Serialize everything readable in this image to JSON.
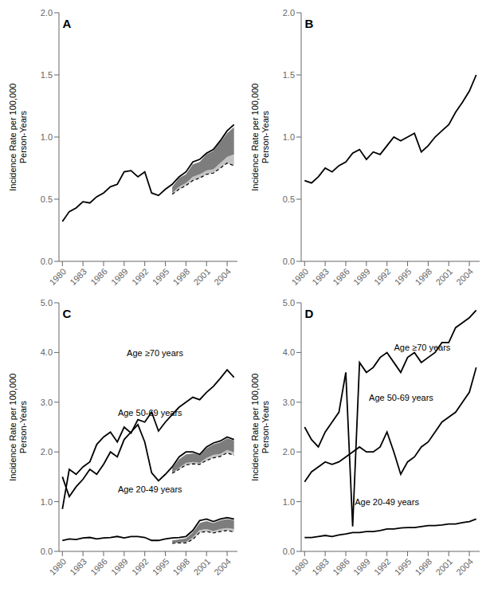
{
  "chart_data": [
    {
      "type": "line",
      "title": "A",
      "y_label": "Incidence Rate per 100,000\nPerson-Years",
      "x": [
        1980,
        1981,
        1982,
        1983,
        1984,
        1985,
        1986,
        1987,
        1988,
        1989,
        1990,
        1991,
        1992,
        1993,
        1994,
        1995,
        1996,
        1997,
        1998,
        1999,
        2000,
        2001,
        2002,
        2003,
        2004,
        2005
      ],
      "xlim": [
        1979.5,
        2005.5
      ],
      "xticks": [
        1980,
        1983,
        1986,
        1989,
        1992,
        1995,
        1998,
        2001,
        2004
      ],
      "ylim": [
        0,
        2
      ],
      "yticks": [
        {
          "value": 0,
          "label": "0.0"
        },
        0.5,
        {
          "value": 1,
          "label": "1.0"
        },
        1.5,
        {
          "value": 2,
          "label": "2.0"
        }
      ],
      "grid": false,
      "series": [
        {
          "type": "band",
          "upper": [
            null,
            null,
            null,
            null,
            null,
            null,
            null,
            null,
            null,
            null,
            null,
            null,
            null,
            null,
            null,
            null,
            0.6,
            0.67,
            0.7,
            0.78,
            0.8,
            0.86,
            0.89,
            0.96,
            1.03,
            1.08
          ],
          "lower": [
            null,
            null,
            null,
            null,
            null,
            null,
            null,
            null,
            null,
            null,
            null,
            null,
            null,
            null,
            null,
            null,
            0.55,
            0.6,
            0.63,
            0.68,
            0.7,
            0.73,
            0.74,
            0.79,
            0.84,
            0.86
          ],
          "values": [
            null,
            null,
            null,
            null,
            null,
            null,
            null,
            null,
            null,
            null,
            null,
            null,
            null,
            null,
            null,
            null,
            0.54,
            0.58,
            0.61,
            0.65,
            0.67,
            0.7,
            0.71,
            0.75,
            0.79,
            0.77
          ],
          "colors": [
            "#666666",
            "#aaaaaa"
          ],
          "color": "#000000",
          "line_style": "dashed"
        },
        {
          "type": "line",
          "values": [
            0.32,
            0.4,
            0.43,
            0.48,
            0.47,
            0.52,
            0.55,
            0.6,
            0.62,
            0.72,
            0.73,
            0.68,
            0.72,
            0.55,
            0.53,
            0.58,
            0.62,
            0.68,
            0.72,
            0.8,
            0.82,
            0.87,
            0.9,
            0.97,
            1.05,
            1.1
          ],
          "color": "#000000",
          "line_style": "solid"
        }
      ]
    },
    {
      "type": "line",
      "title": "B",
      "y_label": "Incidence Rate per 100,000\nPerson-Years",
      "x": [
        1980,
        1981,
        1982,
        1983,
        1984,
        1985,
        1986,
        1987,
        1988,
        1989,
        1990,
        1991,
        1992,
        1993,
        1994,
        1995,
        1996,
        1997,
        1998,
        1999,
        2000,
        2001,
        2002,
        2003,
        2004,
        2005
      ],
      "xlim": [
        1979.5,
        2005.5
      ],
      "xticks": [
        1980,
        1983,
        1986,
        1989,
        1992,
        1995,
        1998,
        2001,
        2004
      ],
      "ylim": [
        0,
        2
      ],
      "yticks": [
        {
          "value": 0,
          "label": "0.0"
        },
        0.5,
        {
          "value": 1,
          "label": "1.0"
        },
        1.5,
        {
          "value": 2,
          "label": "2.0"
        }
      ],
      "grid": false,
      "series": [
        {
          "type": "line",
          "values": [
            0.65,
            0.63,
            0.68,
            0.75,
            0.72,
            0.77,
            0.8,
            0.87,
            0.9,
            0.82,
            0.88,
            0.86,
            0.93,
            1.0,
            0.97,
            1.0,
            1.03,
            0.88,
            0.93,
            1.0,
            1.05,
            1.1,
            1.2,
            1.28,
            1.37,
            1.5
          ],
          "color": "#000000",
          "line_style": "solid"
        }
      ]
    },
    {
      "type": "line",
      "title": "C",
      "y_label": "Incidence Rate per 100,000\nPerson-Years",
      "x": [
        1980,
        1981,
        1982,
        1983,
        1984,
        1985,
        1986,
        1987,
        1988,
        1989,
        1990,
        1991,
        1992,
        1993,
        1994,
        1995,
        1996,
        1997,
        1998,
        1999,
        2000,
        2001,
        2002,
        2003,
        2004,
        2005
      ],
      "xlim": [
        1979.5,
        2005.5
      ],
      "xticks": [
        1980,
        1983,
        1986,
        1989,
        1992,
        1995,
        1998,
        2001,
        2004
      ],
      "ylim": [
        0,
        5
      ],
      "yticks": [
        {
          "value": 0,
          "label": "0.0"
        },
        {
          "value": 1,
          "label": "1.0"
        },
        {
          "value": 2,
          "label": "2.0"
        },
        {
          "value": 3,
          "label": "3.0"
        },
        {
          "value": 4,
          "label": "4.0"
        },
        {
          "value": 5,
          "label": "5.0"
        }
      ],
      "grid": false,
      "annotations": [
        "Age ≥70 years",
        "Age 50-69 years",
        "Age 20-49 years"
      ],
      "series": [
        {
          "type": "band",
          "upper": [
            null,
            null,
            null,
            null,
            null,
            null,
            null,
            null,
            null,
            null,
            null,
            null,
            null,
            null,
            null,
            null,
            1.68,
            1.85,
            1.95,
            1.97,
            1.94,
            2.07,
            2.15,
            2.19,
            2.27,
            2.23
          ],
          "lower": [
            null,
            null,
            null,
            null,
            null,
            null,
            null,
            null,
            null,
            null,
            null,
            null,
            null,
            null,
            null,
            null,
            1.58,
            1.68,
            1.78,
            1.8,
            1.78,
            1.88,
            1.94,
            1.96,
            2.04,
            1.99
          ],
          "values": [
            null,
            null,
            null,
            null,
            null,
            null,
            null,
            null,
            null,
            null,
            null,
            null,
            null,
            null,
            null,
            null,
            1.57,
            1.65,
            1.74,
            1.76,
            1.75,
            1.83,
            1.88,
            1.91,
            1.98,
            1.93
          ],
          "colors": [
            "#666666",
            "#aaaaaa"
          ],
          "color": "#000000",
          "line_style": "dashed"
        },
        {
          "type": "band",
          "upper": [
            null,
            null,
            null,
            null,
            null,
            null,
            null,
            null,
            null,
            null,
            null,
            null,
            null,
            null,
            null,
            null,
            0.22,
            0.24,
            0.26,
            0.38,
            0.57,
            0.61,
            0.57,
            0.62,
            0.65,
            0.63
          ],
          "lower": [
            null,
            null,
            null,
            null,
            null,
            null,
            null,
            null,
            null,
            null,
            null,
            null,
            null,
            null,
            null,
            null,
            0.17,
            0.18,
            0.19,
            0.28,
            0.43,
            0.45,
            0.41,
            0.45,
            0.47,
            0.45
          ],
          "values": [
            null,
            null,
            null,
            null,
            null,
            null,
            null,
            null,
            null,
            null,
            null,
            null,
            null,
            null,
            null,
            null,
            0.16,
            0.17,
            0.17,
            0.24,
            0.38,
            0.4,
            0.37,
            0.4,
            0.42,
            0.39
          ],
          "colors": [
            "#666666",
            "#aaaaaa"
          ],
          "color": "#000000",
          "line_style": "dashed"
        },
        {
          "type": "line",
          "values": [
            0.85,
            1.65,
            1.55,
            1.7,
            1.8,
            2.15,
            2.3,
            2.4,
            2.2,
            2.5,
            2.38,
            2.65,
            2.6,
            2.8,
            2.42,
            2.6,
            2.75,
            2.9,
            3.0,
            3.1,
            3.05,
            3.2,
            3.32,
            3.48,
            3.65,
            3.5
          ],
          "color": "#000000",
          "line_style": "solid"
        },
        {
          "type": "line",
          "values": [
            1.5,
            1.1,
            1.3,
            1.45,
            1.65,
            1.55,
            1.75,
            2.0,
            1.9,
            2.25,
            2.4,
            2.55,
            2.2,
            1.58,
            1.42,
            1.55,
            1.7,
            1.9,
            2.0,
            2.0,
            1.95,
            2.1,
            2.18,
            2.22,
            2.3,
            2.25
          ],
          "color": "#000000",
          "line_style": "solid"
        },
        {
          "type": "line",
          "values": [
            0.22,
            0.25,
            0.24,
            0.27,
            0.28,
            0.25,
            0.27,
            0.28,
            0.3,
            0.27,
            0.3,
            0.3,
            0.28,
            0.22,
            0.22,
            0.25,
            0.27,
            0.28,
            0.3,
            0.42,
            0.62,
            0.65,
            0.6,
            0.65,
            0.68,
            0.65
          ],
          "color": "#000000",
          "line_style": "solid"
        }
      ]
    },
    {
      "type": "line",
      "title": "D",
      "y_label": "Incidence Rate per 100,000\nPerson-Years",
      "x": [
        1980,
        1981,
        1982,
        1983,
        1984,
        1985,
        1986,
        1987,
        1988,
        1989,
        1990,
        1991,
        1992,
        1993,
        1994,
        1995,
        1996,
        1997,
        1998,
        1999,
        2000,
        2001,
        2002,
        2003,
        2004,
        2005
      ],
      "xlim": [
        1979.5,
        2005.5
      ],
      "xticks": [
        1980,
        1983,
        1986,
        1989,
        1992,
        1995,
        1998,
        2001,
        2004
      ],
      "ylim": [
        0,
        5
      ],
      "yticks": [
        {
          "value": 0,
          "label": "0.0"
        },
        {
          "value": 1,
          "label": "1.0"
        },
        {
          "value": 2,
          "label": "2.0"
        },
        {
          "value": 3,
          "label": "3.0"
        },
        {
          "value": 4,
          "label": "4.0"
        },
        {
          "value": 5,
          "label": "5.0"
        }
      ],
      "grid": false,
      "annotations": [
        "Age ≥70 years",
        "Age 50-69 years",
        "Age 20-49 years"
      ],
      "series": [
        {
          "type": "line",
          "values": [
            2.5,
            2.25,
            2.1,
            2.4,
            2.6,
            2.8,
            3.6,
            0.5,
            3.8,
            3.6,
            3.7,
            3.9,
            4.0,
            3.8,
            3.6,
            3.9,
            4.0,
            3.8,
            3.9,
            4.0,
            4.2,
            4.2,
            4.5,
            4.6,
            4.7,
            4.85
          ],
          "color": "#000000",
          "line_style": "solid"
        },
        {
          "type": "line",
          "values": [
            1.4,
            1.6,
            1.7,
            1.8,
            1.75,
            1.8,
            1.9,
            2.0,
            2.1,
            2.0,
            2.0,
            2.1,
            2.4,
            2.0,
            1.55,
            1.8,
            1.9,
            2.1,
            2.2,
            2.4,
            2.6,
            2.7,
            2.8,
            3.0,
            3.2,
            3.7
          ],
          "color": "#000000",
          "line_style": "solid"
        },
        {
          "type": "line",
          "values": [
            0.28,
            0.28,
            0.3,
            0.32,
            0.3,
            0.33,
            0.35,
            0.38,
            0.38,
            0.4,
            0.4,
            0.42,
            0.45,
            0.45,
            0.47,
            0.48,
            0.48,
            0.5,
            0.52,
            0.52,
            0.53,
            0.55,
            0.55,
            0.58,
            0.6,
            0.65
          ],
          "color": "#000000",
          "line_style": "solid"
        }
      ]
    }
  ]
}
